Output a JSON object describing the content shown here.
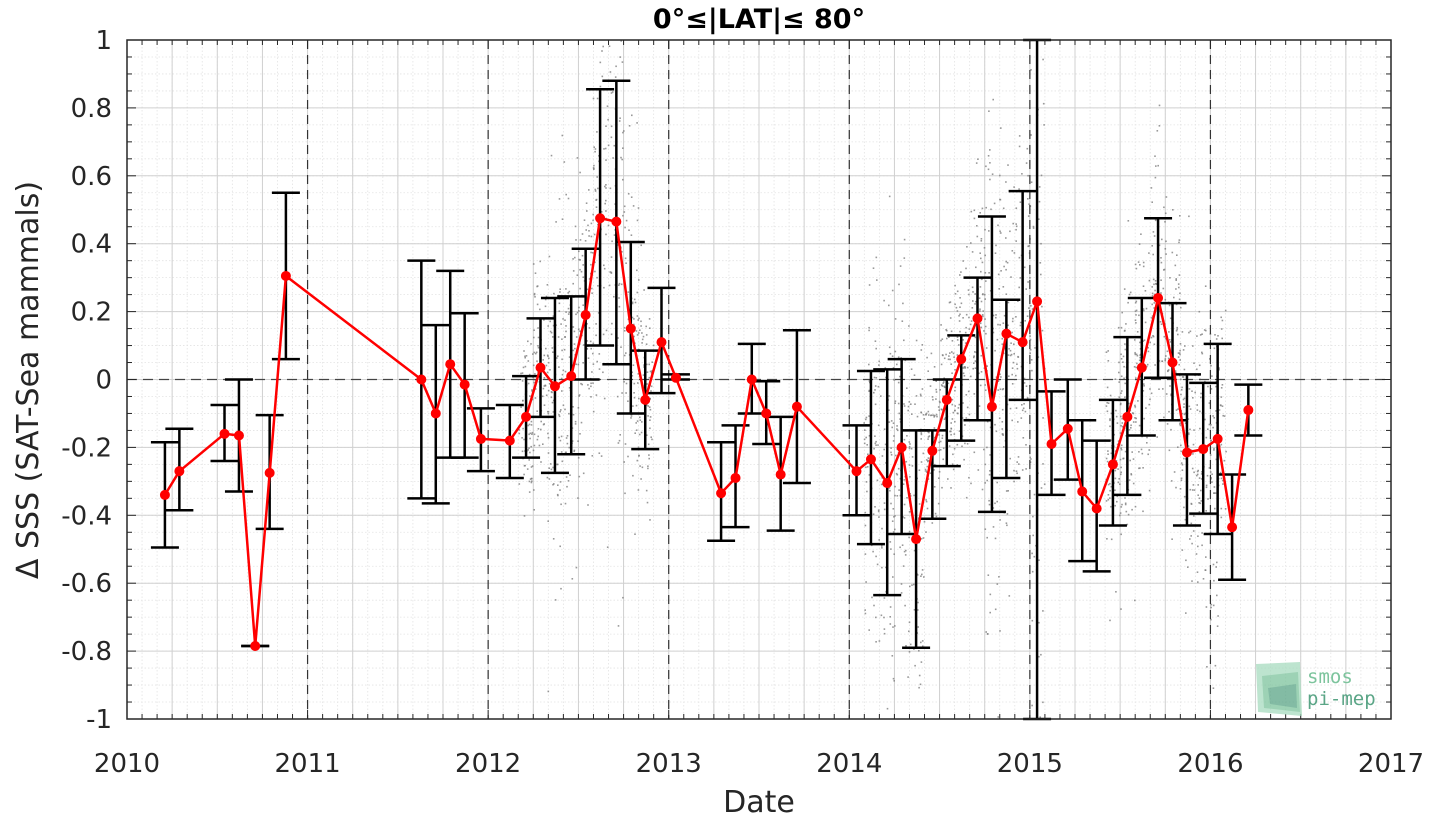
{
  "chart_data": {
    "type": "line",
    "title": "0°≤|LAT|≤ 80°",
    "xlabel": "Date",
    "ylabel": "Δ SSS (SAT-Sea mammals)",
    "xlim": [
      2010,
      2017
    ],
    "ylim": [
      -1,
      1
    ],
    "xticks": [
      2010,
      2011,
      2012,
      2013,
      2014,
      2015,
      2016,
      2017
    ],
    "xtick_labels": [
      "2010",
      "2011",
      "2012",
      "2013",
      "2014",
      "2015",
      "2016",
      "2017"
    ],
    "yticks": [
      -1,
      -0.8,
      -0.6,
      -0.4,
      -0.2,
      0,
      0.2,
      0.4,
      0.6,
      0.8,
      1
    ],
    "ytick_labels": [
      "-1",
      "-0.8",
      "-0.6",
      "-0.4",
      "-0.2",
      "0",
      "0.2",
      "0.4",
      "0.6",
      "0.8",
      "1"
    ],
    "grid": true,
    "year_lines": [
      2011,
      2012,
      2013,
      2014,
      2015,
      2016
    ],
    "zero_line": 0,
    "scatter_color": "#808080",
    "series_color": "#ff0000",
    "errorbar_color": "#000000",
    "series": [
      {
        "x": [
          2010.21,
          2010.29,
          2010.54,
          2010.62,
          2010.71,
          2010.79,
          2010.88,
          2011.63,
          2011.71,
          2011.79,
          2011.87,
          2011.96,
          2012.12,
          2012.21,
          2012.29,
          2012.37,
          2012.46,
          2012.54,
          2012.62,
          2012.71,
          2012.79,
          2012.87,
          2012.96,
          2013.04,
          2013.29,
          2013.37,
          2013.46,
          2013.54,
          2013.62,
          2013.71,
          2014.04,
          2014.12,
          2014.21,
          2014.29,
          2014.37,
          2014.46,
          2014.54,
          2014.62,
          2014.71,
          2014.79,
          2014.87,
          2014.96,
          2015.04,
          2015.12,
          2015.21,
          2015.29,
          2015.37,
          2015.46,
          2015.54,
          2015.62,
          2015.71,
          2015.79,
          2015.87,
          2015.96,
          2016.04,
          2016.12,
          2016.21
        ],
        "values": [
          -0.34,
          -0.27,
          -0.16,
          -0.165,
          -0.785,
          -0.275,
          0.305,
          0.0,
          -0.1,
          0.045,
          -0.015,
          -0.175,
          -0.18,
          -0.11,
          0.035,
          -0.02,
          0.01,
          0.19,
          0.475,
          0.465,
          0.15,
          -0.06,
          0.11,
          0.005,
          -0.335,
          -0.29,
          0.0,
          -0.1,
          -0.28,
          -0.08,
          -0.27,
          -0.235,
          -0.305,
          -0.2,
          -0.47,
          -0.21,
          -0.06,
          0.06,
          0.18,
          -0.08,
          0.135,
          0.11,
          0.23,
          -0.19,
          -0.145,
          -0.33,
          -0.38,
          -0.25,
          -0.11,
          0.035,
          0.24,
          0.05,
          -0.215,
          -0.205,
          -0.175,
          -0.435,
          -0.09
        ],
        "lower": [
          -0.495,
          -0.385,
          -0.24,
          -0.33,
          -0.785,
          -0.44,
          0.06,
          -0.35,
          -0.365,
          -0.23,
          -0.23,
          -0.27,
          -0.29,
          -0.23,
          -0.11,
          -0.275,
          -0.22,
          0.0,
          0.1,
          0.045,
          -0.1,
          -0.205,
          -0.04,
          0.0,
          -0.475,
          -0.435,
          -0.1,
          -0.19,
          -0.445,
          -0.305,
          -0.4,
          -0.485,
          -0.635,
          -0.455,
          -0.79,
          -0.41,
          -0.255,
          -0.18,
          -0.12,
          -0.39,
          -0.29,
          -0.06,
          -1.0,
          -0.34,
          -0.295,
          -0.535,
          -0.565,
          -0.43,
          -0.34,
          -0.165,
          0.005,
          -0.12,
          -0.43,
          -0.395,
          -0.455,
          -0.59,
          -0.165
        ],
        "upper": [
          -0.185,
          -0.145,
          -0.075,
          0.0,
          -0.785,
          -0.105,
          0.55,
          0.35,
          0.16,
          0.32,
          0.195,
          -0.085,
          -0.075,
          0.01,
          0.18,
          0.24,
          0.245,
          0.385,
          0.855,
          0.88,
          0.405,
          0.085,
          0.27,
          0.015,
          -0.185,
          -0.135,
          0.105,
          -0.005,
          -0.11,
          0.145,
          -0.135,
          0.025,
          0.03,
          0.06,
          -0.15,
          -0.15,
          0.0,
          0.13,
          0.3,
          0.48,
          0.235,
          0.555,
          1.0,
          -0.035,
          0.0,
          -0.12,
          -0.18,
          -0.06,
          0.125,
          0.24,
          0.475,
          0.225,
          0.015,
          -0.01,
          0.105,
          -0.28,
          -0.015
        ]
      }
    ]
  },
  "logo": {
    "line1": "smos",
    "line2": "pi-mep",
    "color1": "#7dc49d",
    "color2": "#5aa586"
  }
}
